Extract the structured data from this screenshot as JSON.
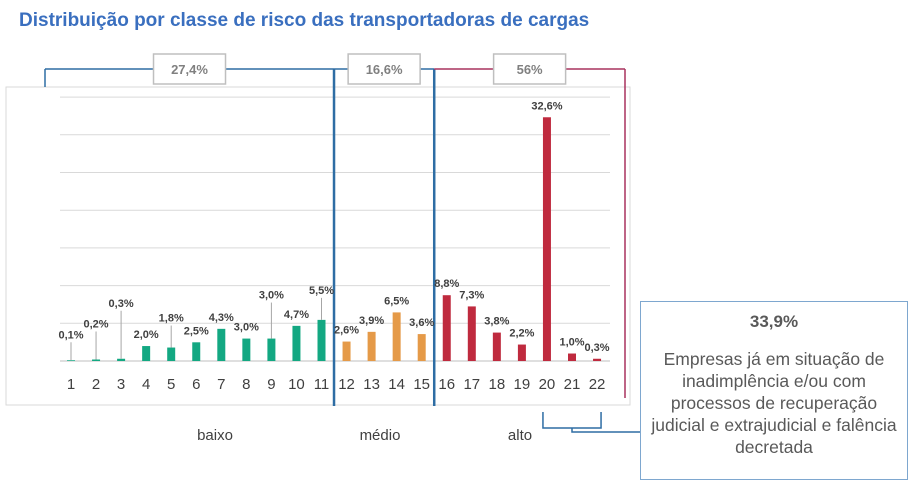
{
  "title": "Distribuição por classe de risco das transportadoras de cargas",
  "chart_data": {
    "type": "bar",
    "categories": [
      "1",
      "2",
      "3",
      "4",
      "5",
      "6",
      "7",
      "8",
      "9",
      "10",
      "11",
      "12",
      "13",
      "14",
      "15",
      "16",
      "17",
      "18",
      "19",
      "20",
      "21",
      "22"
    ],
    "values": [
      0.1,
      0.2,
      0.3,
      2.0,
      1.8,
      2.5,
      4.3,
      3.0,
      3.0,
      4.7,
      5.5,
      2.6,
      3.9,
      6.5,
      3.6,
      8.8,
      7.3,
      3.8,
      2.2,
      32.6,
      1.0,
      0.3
    ],
    "labels": [
      "0,1%",
      "0,2%",
      "0,3%",
      "2,0%",
      "1,8%",
      "2,5%",
      "4,3%",
      "3,0%",
      "3,0%",
      "4,7%",
      "5,5%",
      "2,6%",
      "3,9%",
      "6,5%",
      "3,6%",
      "8,8%",
      "7,3%",
      "3,8%",
      "2,2%",
      "32,6%",
      "1,0%",
      "0,3%"
    ],
    "groups": [
      {
        "name": "baixo",
        "from": 1,
        "to": 11,
        "total": "27,4%",
        "color": "#13a882"
      },
      {
        "name": "médio",
        "from": 12,
        "to": 15,
        "total": "16,6%",
        "color": "#e59a48"
      },
      {
        "name": "alto",
        "from": 16,
        "to": 22,
        "total": "56%",
        "color": "#bf2a3e"
      }
    ],
    "ylim": [
      0,
      35
    ],
    "grid": true
  },
  "note": {
    "value": "33,9%",
    "text": "Empresas já em situação de inadimplência e/ou com processos de recuperação judicial e extrajudicial e falência decretada"
  }
}
